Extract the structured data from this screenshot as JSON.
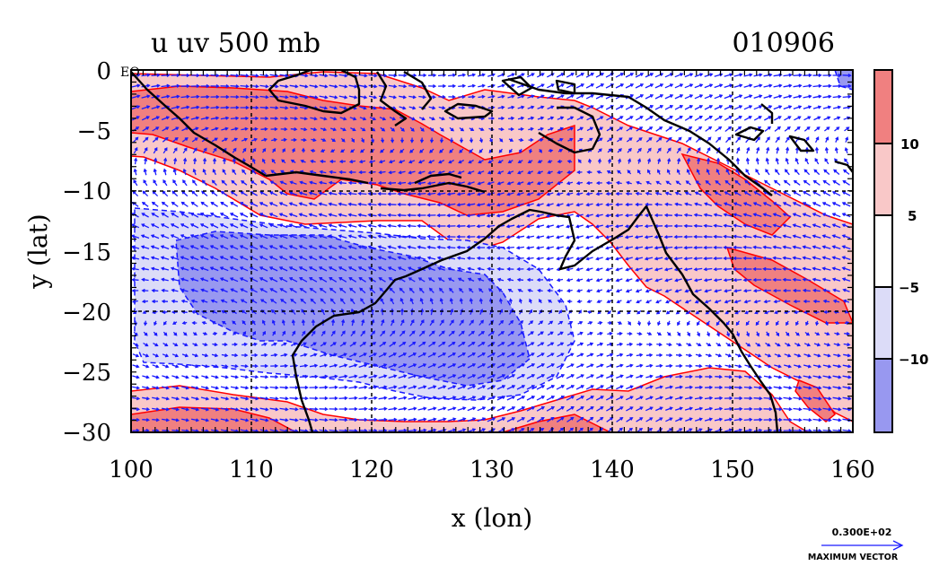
{
  "title_left": "u uv 500 mb",
  "title_right": "010906",
  "equator_label": "EQ",
  "x_axis": {
    "label": "x (lon)",
    "ticks": [
      "100",
      "110",
      "120",
      "130",
      "140",
      "150",
      "160"
    ],
    "range": [
      100,
      160
    ]
  },
  "y_axis": {
    "label": "y (lat)",
    "ticks": [
      "0",
      "−5",
      "−10",
      "−15",
      "−20",
      "−25",
      "−30"
    ],
    "range": [
      -30,
      0
    ]
  },
  "colorbar": {
    "labels": [
      "10",
      "5",
      "−5",
      "−10"
    ],
    "colors": [
      "#f08080",
      "#f9c8c8",
      "#ffffff",
      "#dcdcf8",
      "#9898f0"
    ]
  },
  "vector_key": {
    "magnitude": "0.300E+02",
    "caption": "MAXIMUM VECTOR"
  },
  "palette": {
    "strong_pos": "#f08080",
    "weak_pos": "#f9c8c8",
    "weak_neg": "#dcdcf8",
    "strong_neg": "#9898f0",
    "contour": "#ff0000",
    "vector": "#1a1aff",
    "coast": "#000000"
  }
}
